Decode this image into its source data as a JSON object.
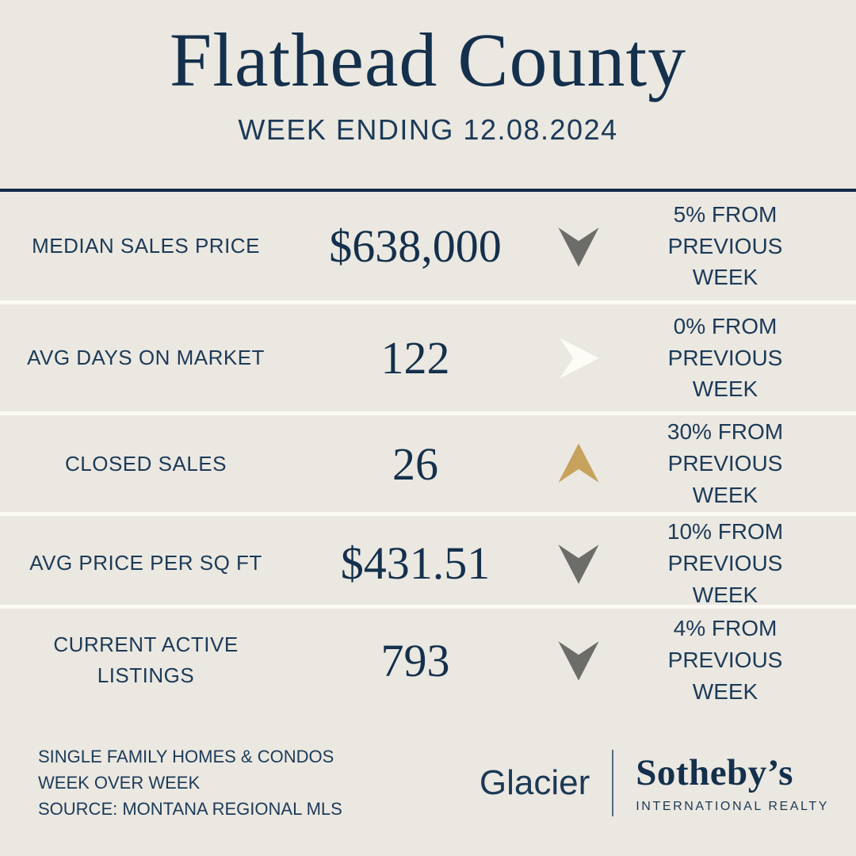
{
  "header": {
    "title": "Flathead County",
    "subtitle": "WEEK ENDING 12.08.2024"
  },
  "colors": {
    "background": "#EBE8E1",
    "divider_white": "#FAF9F3",
    "navy": "#14304C",
    "label_navy": "#1C3A58",
    "rule_navy": "#132B47",
    "arrow_gray": "#6C6C69",
    "arrow_gold": "#C6A25D",
    "arrow_white": "#FCFBF5"
  },
  "stats": [
    {
      "label": "MEDIAN SALES PRICE",
      "value": "$638,000",
      "trend": "down",
      "trend_color": "#6C6C69",
      "change_line1": "5% FROM PREVIOUS",
      "change_line2": "WEEK"
    },
    {
      "label": "AVG DAYS ON MARKET",
      "value": "122",
      "trend": "right",
      "trend_color": "#FCFBF5",
      "change_line1": "0% FROM PREVIOUS",
      "change_line2": "WEEK"
    },
    {
      "label": "CLOSED SALES",
      "value": "26",
      "trend": "up",
      "trend_color": "#C6A25D",
      "change_line1": "30% FROM PREVIOUS",
      "change_line2": "WEEK"
    },
    {
      "label": "AVG PRICE PER SQ FT",
      "value": "$431.51",
      "trend": "down",
      "trend_color": "#6C6C69",
      "change_line1": "10% FROM PREVIOUS",
      "change_line2": "WEEK"
    },
    {
      "label": "CURRENT ACTIVE LISTINGS",
      "value": "793",
      "trend": "down",
      "trend_color": "#6C6C69",
      "change_line1": "4% FROM PREVIOUS",
      "change_line2": "WEEK"
    }
  ],
  "footer": {
    "notes": [
      "SINGLE FAMILY HOMES & CONDOS",
      "WEEK OVER WEEK",
      "SOURCE: MONTANA REGIONAL MLS"
    ],
    "brand": {
      "left": "Glacier",
      "right_top": "Sotheby’s",
      "right_bottom": "INTERNATIONAL REALTY"
    }
  }
}
